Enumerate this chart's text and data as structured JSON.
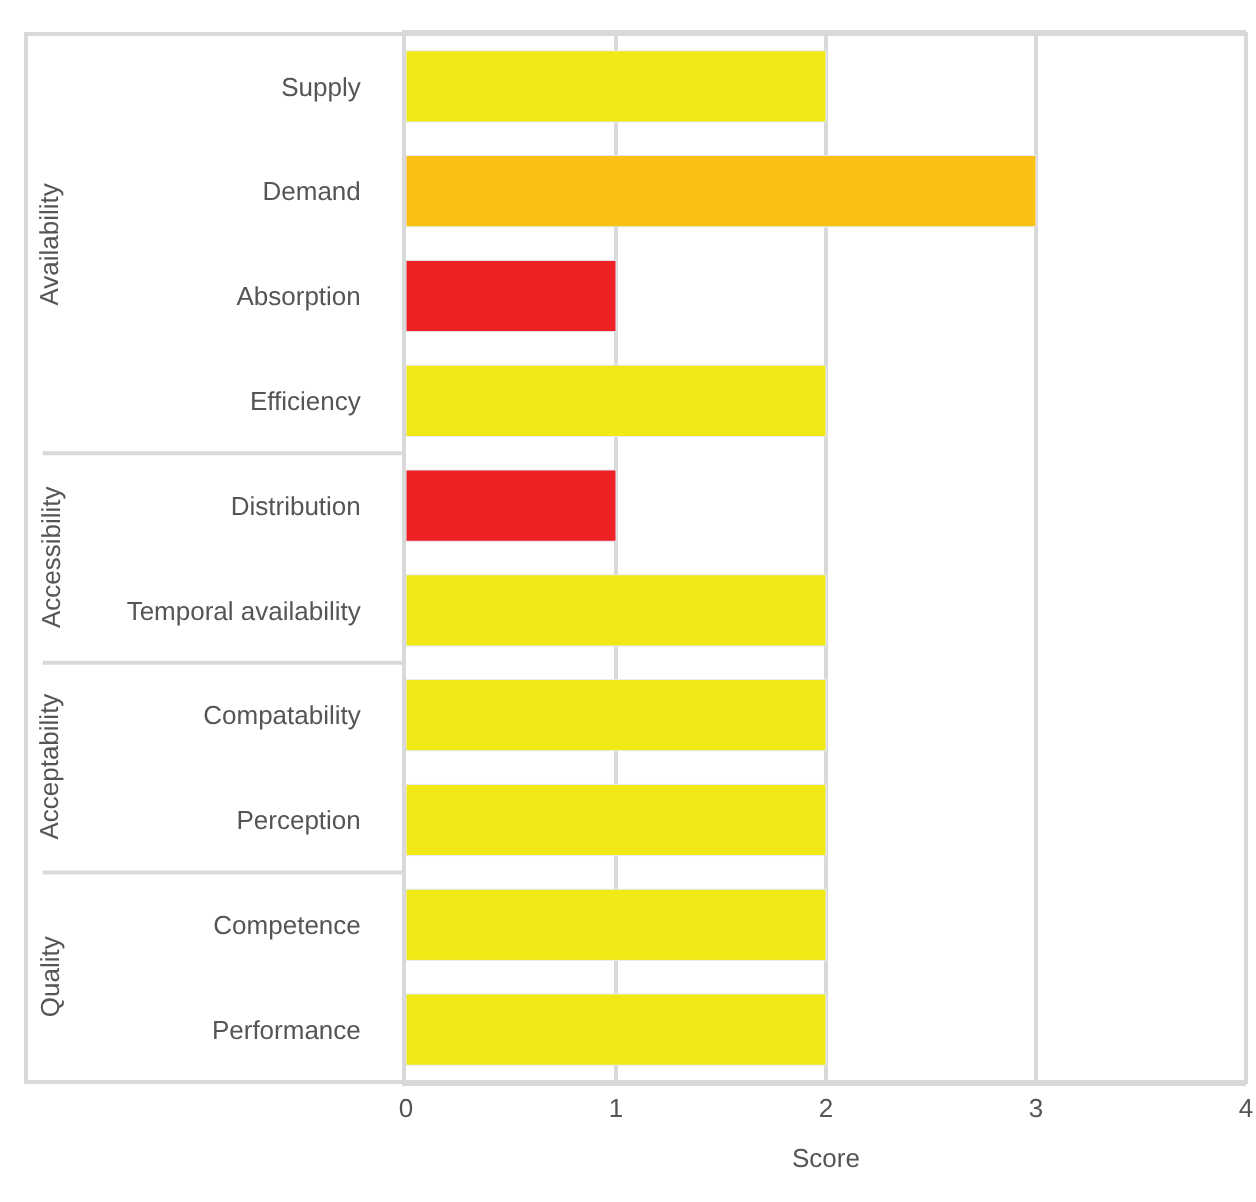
{
  "chart_data": {
    "type": "bar",
    "orientation": "horizontal",
    "xlabel": "Score",
    "categories": [
      "Supply",
      "Demand",
      "Absorption",
      "Efficiency",
      "Distribution",
      "Temporal availability",
      "Compatability",
      "Perception",
      "Competence",
      "Performance"
    ],
    "values": [
      2,
      3,
      1,
      2,
      1,
      2,
      2,
      2,
      2,
      2
    ],
    "colors": [
      "#f0e916",
      "#fbc014",
      "#ee2124",
      "#f0e916",
      "#ee2124",
      "#f0e916",
      "#f0e916",
      "#f0e916",
      "#f0e916",
      "#f0e916"
    ],
    "xlim": [
      0,
      4
    ],
    "xticks": [
      0,
      1,
      2,
      3,
      4
    ],
    "grid": "x",
    "legend": false,
    "annotations": [
      "Availability",
      "Accessibility",
      "Acceptability",
      "Quality"
    ]
  }
}
